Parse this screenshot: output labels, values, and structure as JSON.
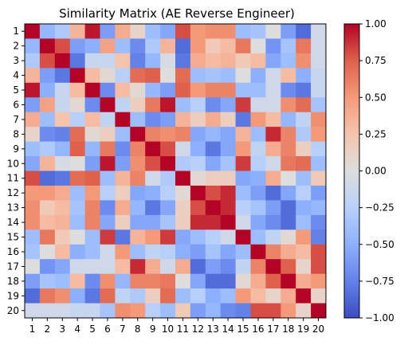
{
  "chart_data": {
    "type": "heatmap",
    "title": "Similarity Matrix (AE Reverse Engineer)",
    "xlabel": "",
    "ylabel": "",
    "x_tick_labels": [
      "1",
      "2",
      "3",
      "4",
      "5",
      "6",
      "7",
      "8",
      "9",
      "10",
      "11",
      "12",
      "13",
      "14",
      "15",
      "16",
      "17",
      "18",
      "19",
      "20"
    ],
    "y_tick_labels": [
      "1",
      "2",
      "3",
      "4",
      "5",
      "6",
      "7",
      "8",
      "9",
      "10",
      "11",
      "12",
      "13",
      "14",
      "15",
      "16",
      "17",
      "18",
      "19",
      "20"
    ],
    "colormap": "coolwarm",
    "vmin": -1.0,
    "vmax": 1.0,
    "colorbar_ticks": [
      "1.00",
      "0.75",
      "0.50",
      "0.25",
      "0.00",
      "−0.25",
      "−0.50",
      "−0.75",
      "−1.00"
    ],
    "colorbar_tick_values": [
      1.0,
      0.75,
      0.5,
      0.25,
      0.0,
      -0.25,
      -0.5,
      -0.75,
      -1.0
    ],
    "grid": false,
    "matrix": [
      [
        1.0,
        -0.45,
        -0.3,
        0.35,
        0.95,
        -0.6,
        0.4,
        0.1,
        -0.4,
        -0.55,
        0.8,
        0.5,
        0.55,
        0.55,
        -0.4,
        -0.35,
        0.0,
        -0.6,
        -0.85,
        -0.1
      ],
      [
        -0.45,
        1.0,
        0.8,
        -0.6,
        -0.5,
        0.45,
        -0.4,
        -0.7,
        -0.3,
        0.35,
        -0.85,
        0.5,
        0.2,
        0.3,
        0.65,
        0.0,
        -0.65,
        -0.35,
        0.65,
        -0.1
      ],
      [
        -0.3,
        0.8,
        1.0,
        -0.8,
        -0.15,
        -0.15,
        0.25,
        -0.75,
        -0.45,
        -0.05,
        -0.8,
        0.4,
        0.3,
        0.35,
        0.2,
        0.3,
        -0.55,
        -0.4,
        0.55,
        -0.1
      ],
      [
        0.35,
        -0.6,
        -0.8,
        1.0,
        0.3,
        0.05,
        -0.25,
        0.7,
        0.75,
        0.0,
        0.7,
        -0.4,
        -0.35,
        -0.4,
        0.0,
        -0.5,
        -0.1,
        0.3,
        -0.5,
        -0.15
      ],
      [
        0.95,
        -0.5,
        -0.15,
        0.3,
        1.0,
        -0.7,
        0.3,
        0.05,
        -0.45,
        -0.6,
        0.75,
        0.5,
        0.6,
        0.6,
        -0.4,
        -0.4,
        -0.1,
        -0.7,
        -0.8,
        -0.15
      ],
      [
        -0.6,
        0.45,
        -0.15,
        0.05,
        -0.7,
        1.0,
        -0.2,
        0.15,
        0.65,
        0.95,
        -0.4,
        -0.25,
        -0.7,
        -0.55,
        0.85,
        -0.1,
        -0.1,
        0.55,
        0.7,
        -0.35
      ],
      [
        0.4,
        -0.4,
        0.25,
        -0.25,
        0.3,
        -0.2,
        1.0,
        -0.4,
        -0.7,
        -0.6,
        0.35,
        0.15,
        0.4,
        0.15,
        -0.8,
        0.5,
        0.3,
        -0.45,
        -0.2,
        0.55
      ],
      [
        0.1,
        -0.7,
        -0.75,
        0.7,
        0.05,
        0.15,
        -0.4,
        1.0,
        0.6,
        0.55,
        0.6,
        -0.55,
        -0.45,
        -0.55,
        0.35,
        -0.4,
        0.9,
        0.6,
        -0.3,
        0.5
      ],
      [
        -0.4,
        -0.3,
        -0.45,
        0.75,
        -0.45,
        0.65,
        -0.7,
        0.6,
        1.0,
        0.8,
        -0.1,
        -0.5,
        -0.8,
        -0.55,
        0.5,
        -0.2,
        0.4,
        0.6,
        0.15,
        -0.25
      ],
      [
        -0.55,
        0.35,
        -0.05,
        0.0,
        -0.6,
        0.95,
        -0.6,
        0.55,
        0.8,
        1.0,
        -0.3,
        -0.25,
        -0.55,
        -0.35,
        0.85,
        -0.25,
        -0.1,
        0.65,
        0.7,
        -0.4
      ],
      [
        0.8,
        -0.85,
        -0.8,
        0.7,
        0.75,
        -0.4,
        0.35,
        0.6,
        -0.1,
        -0.3,
        1.0,
        0.05,
        0.15,
        0.15,
        -0.55,
        -0.5,
        0.4,
        0.0,
        -0.4,
        0.2
      ],
      [
        0.5,
        0.5,
        0.4,
        -0.4,
        0.5,
        -0.25,
        0.15,
        -0.55,
        -0.5,
        -0.25,
        0.05,
        1.0,
        0.8,
        0.9,
        -0.4,
        -0.6,
        -0.85,
        -0.55,
        -0.25,
        -0.6
      ],
      [
        0.55,
        0.2,
        0.3,
        -0.35,
        0.6,
        -0.7,
        0.4,
        -0.45,
        -0.8,
        -0.55,
        0.15,
        0.8,
        1.0,
        0.9,
        -0.25,
        -0.35,
        -0.6,
        -0.85,
        -0.5,
        -0.45
      ],
      [
        0.55,
        0.3,
        0.35,
        -0.4,
        0.6,
        -0.55,
        0.15,
        -0.55,
        -0.55,
        -0.35,
        0.15,
        0.9,
        0.9,
        1.0,
        -0.1,
        -0.55,
        -0.7,
        -0.85,
        -0.4,
        -0.7
      ],
      [
        -0.4,
        0.65,
        0.2,
        0.0,
        -0.4,
        0.85,
        -0.8,
        0.35,
        0.5,
        0.85,
        -0.55,
        -0.4,
        -0.25,
        -0.1,
        1.0,
        -0.4,
        -0.2,
        0.05,
        0.5,
        -0.75
      ],
      [
        -0.35,
        0.0,
        0.3,
        -0.5,
        -0.4,
        -0.1,
        0.5,
        -0.4,
        -0.2,
        -0.25,
        -0.5,
        -0.6,
        -0.35,
        -0.55,
        -0.4,
        1.0,
        0.6,
        0.4,
        0.3,
        0.8
      ],
      [
        0.0,
        -0.65,
        -0.55,
        -0.1,
        -0.1,
        -0.1,
        0.3,
        0.9,
        0.4,
        -0.1,
        0.4,
        -0.85,
        -0.6,
        -0.7,
        -0.2,
        0.6,
        1.0,
        0.75,
        0.1,
        0.8
      ],
      [
        -0.6,
        -0.35,
        -0.4,
        0.3,
        -0.7,
        0.55,
        -0.45,
        0.6,
        0.6,
        0.65,
        0.0,
        -0.55,
        -0.85,
        -0.85,
        0.05,
        0.4,
        0.75,
        1.0,
        0.4,
        0.5
      ],
      [
        -0.85,
        0.65,
        0.55,
        -0.5,
        -0.8,
        0.7,
        -0.2,
        -0.3,
        0.15,
        0.7,
        -0.4,
        -0.25,
        -0.5,
        -0.4,
        0.5,
        0.3,
        0.1,
        0.4,
        1.0,
        0.1
      ],
      [
        -0.1,
        -0.1,
        -0.1,
        -0.15,
        -0.15,
        -0.35,
        0.55,
        0.5,
        -0.25,
        -0.4,
        0.2,
        -0.6,
        -0.45,
        -0.7,
        -0.75,
        0.8,
        0.8,
        0.5,
        0.1,
        1.0
      ]
    ]
  }
}
